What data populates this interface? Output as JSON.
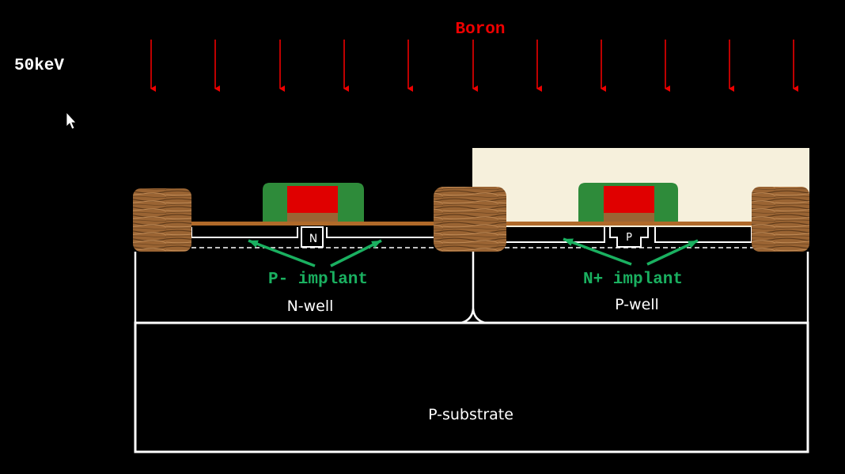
{
  "ion": {
    "species": "Boron",
    "energy": "50keV",
    "color": "#ee0000"
  },
  "labels": {
    "n_tap": "N",
    "p_tap": "P",
    "left_implant": "P- implant",
    "right_implant": "N+ implant",
    "n_well": "N-well",
    "p_well": "P-well",
    "substrate": "P-substrate"
  },
  "colors": {
    "background": "#000000",
    "outline": "#ffffff",
    "gate_spacer": "#2e8b3a",
    "gate_poly": "#e00000",
    "field_oxide": "#9a6433",
    "photoresist": "#f6f0dc",
    "implant_label": "#1ab060"
  }
}
